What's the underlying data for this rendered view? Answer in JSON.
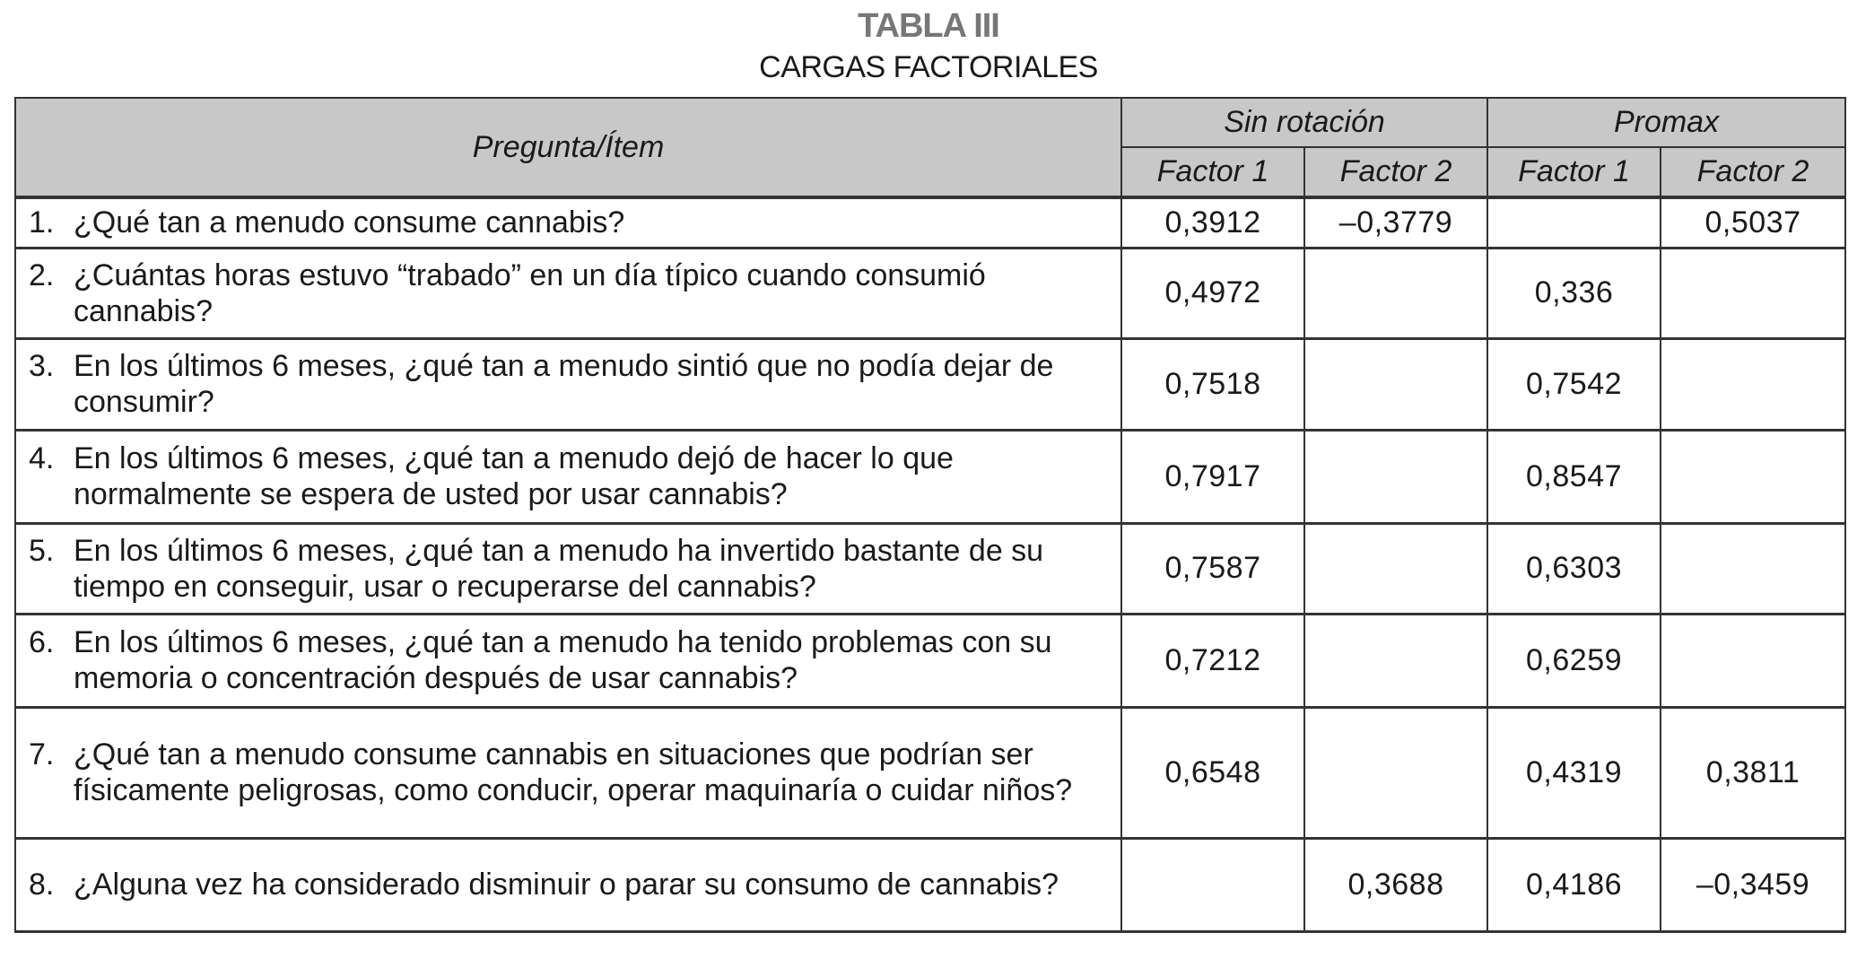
{
  "title": "TABLA III",
  "subtitle": "CARGAS FACTORIALES",
  "header": {
    "item": "Pregunta/Ítem",
    "group1": "Sin rotación",
    "group2": "Promax",
    "factors": [
      "Factor 1",
      "Factor 2",
      "Factor 1",
      "Factor 2"
    ]
  },
  "rows": [
    {
      "num": "1.",
      "text": "¿Qué tan a menudo consume cannabis?",
      "values": [
        "0,3912",
        "–0,3779",
        "",
        "0,5037"
      ]
    },
    {
      "num": "2.",
      "text": "¿Cuántas horas estuvo “trabado” en un día típico cuando consumió cannabis?",
      "values": [
        "0,4972",
        "",
        "0,336",
        ""
      ]
    },
    {
      "num": "3.",
      "text": "En los últimos 6 meses, ¿qué tan a menudo sintió que no podía dejar de consumir?",
      "values": [
        "0,7518",
        "",
        "0,7542",
        ""
      ]
    },
    {
      "num": "4.",
      "text": "En los últimos 6 meses, ¿qué tan a menudo dejó de hacer lo que normalmente se espera de usted por usar cannabis?",
      "values": [
        "0,7917",
        "",
        "0,8547",
        ""
      ]
    },
    {
      "num": "5.",
      "text": "En los últimos 6 meses, ¿qué tan a menudo ha invertido bastante de su tiempo en conseguir, usar o recuperarse del cannabis?",
      "values": [
        "0,7587",
        "",
        "0,6303",
        ""
      ]
    },
    {
      "num": "6.",
      "text": "En los últimos 6 meses, ¿qué tan a menudo ha tenido problemas con su memoria o concentración después de usar cannabis?",
      "values": [
        "0,7212",
        "",
        "0,6259",
        ""
      ]
    },
    {
      "num": "7.",
      "text": "¿Qué tan a menudo consume cannabis en situaciones que podrían ser físicamente peligrosas, como conducir, operar maquinaría o cuidar niños?",
      "values": [
        "0,6548",
        "",
        "0,4319",
        "0,3811"
      ]
    },
    {
      "num": "8.",
      "text": "¿Alguna vez ha considerado disminuir o parar su consumo de cannabis?",
      "values": [
        "",
        "0,3688",
        "0,4186",
        "–0,3459"
      ]
    }
  ]
}
